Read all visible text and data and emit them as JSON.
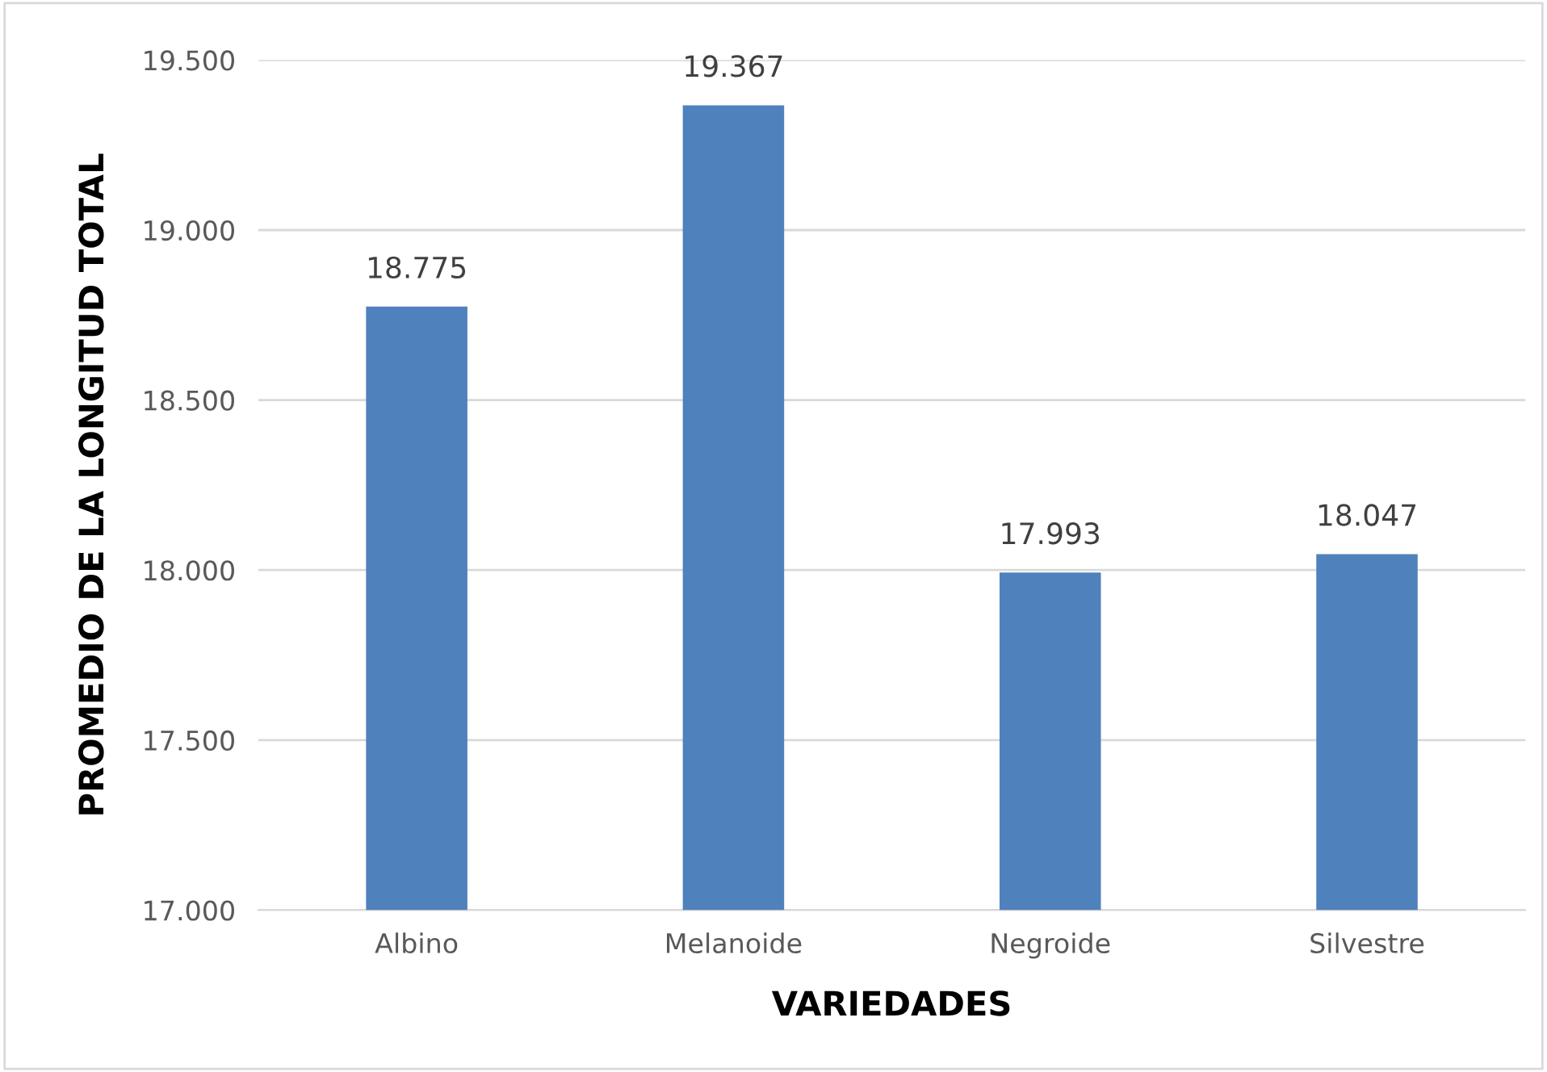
{
  "chart_data": {
    "type": "bar",
    "xlabel": "VARIEDADES",
    "ylabel": "PROMEDIO DE LA LONGITUD TOTAL",
    "categories": [
      "Albino",
      "Melanoide",
      "Negroide",
      "Silvestre"
    ],
    "values": [
      18.775,
      19.367,
      17.993,
      18.047
    ],
    "color": "#4f81bd",
    "ylim": [
      17,
      19.5
    ],
    "yticks": [
      {
        "value": 17,
        "label": "17.000"
      },
      {
        "value": 17.5,
        "label": "17.500"
      },
      {
        "value": 18,
        "label": "18.000"
      },
      {
        "value": 18.5,
        "label": "18.500"
      },
      {
        "value": 19,
        "label": "19.000"
      },
      {
        "value": 19.5,
        "label": "19.500"
      }
    ],
    "grid": "y",
    "data_labels": true,
    "legend": false
  }
}
